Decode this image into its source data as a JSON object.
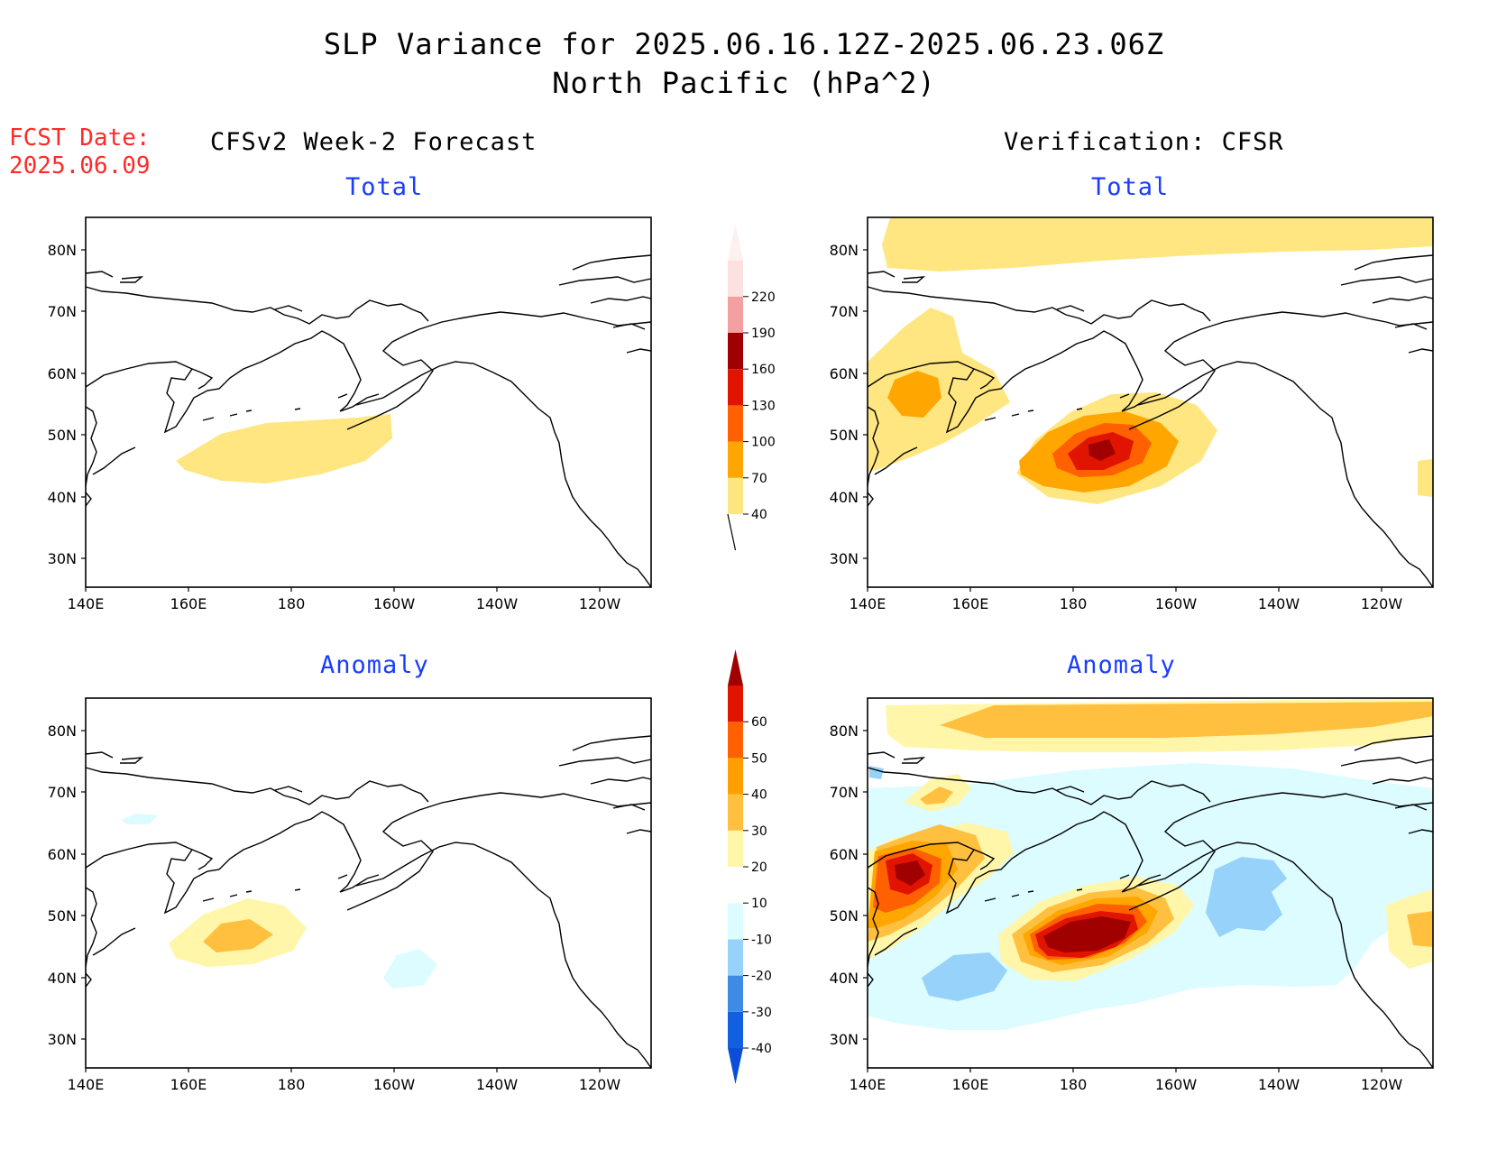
{
  "header": {
    "title_line1": "SLP Variance for 2025.06.16.12Z-2025.06.23.06Z",
    "title_line2": "North Pacific (hPa^2)",
    "fcst_label": "FCST Date:",
    "fcst_date": "2025.06.09"
  },
  "columns": {
    "left": "CFSv2 Week-2 Forecast",
    "right": "Verification: CFSR"
  },
  "panels": [
    {
      "id": "fcst-total",
      "subtitle": "Total"
    },
    {
      "id": "verif-total",
      "subtitle": "Total"
    },
    {
      "id": "fcst-anomaly",
      "subtitle": "Anomaly"
    },
    {
      "id": "verif-anomaly",
      "subtitle": "Anomaly"
    }
  ],
  "axes": {
    "lat_labels": [
      "80N",
      "70N",
      "60N",
      "50N",
      "40N",
      "30N"
    ],
    "lon_labels": [
      "140E",
      "160E",
      "180",
      "160W",
      "140W",
      "120W"
    ]
  },
  "colorbars": {
    "total": {
      "levels": [
        "40",
        "70",
        "100",
        "130",
        "160",
        "190",
        "220"
      ],
      "colors": [
        "#ffe680",
        "#ffa600",
        "#ff6000",
        "#e01400",
        "#a00000",
        "#f4a0a0",
        "#fde0e0"
      ]
    },
    "anomaly": {
      "levels": [
        "-40",
        "-30",
        "-20",
        "-10",
        "10",
        "20",
        "30",
        "40",
        "50",
        "60"
      ],
      "colors_neg": [
        "#1060e0",
        "#3c8ce6",
        "#96d2fa",
        "#dcfcff"
      ],
      "white": "#ffffff",
      "colors_pos": [
        "#fff6aa",
        "#ffc040",
        "#ffa000",
        "#ff6000",
        "#e01400",
        "#a00000"
      ]
    }
  }
}
